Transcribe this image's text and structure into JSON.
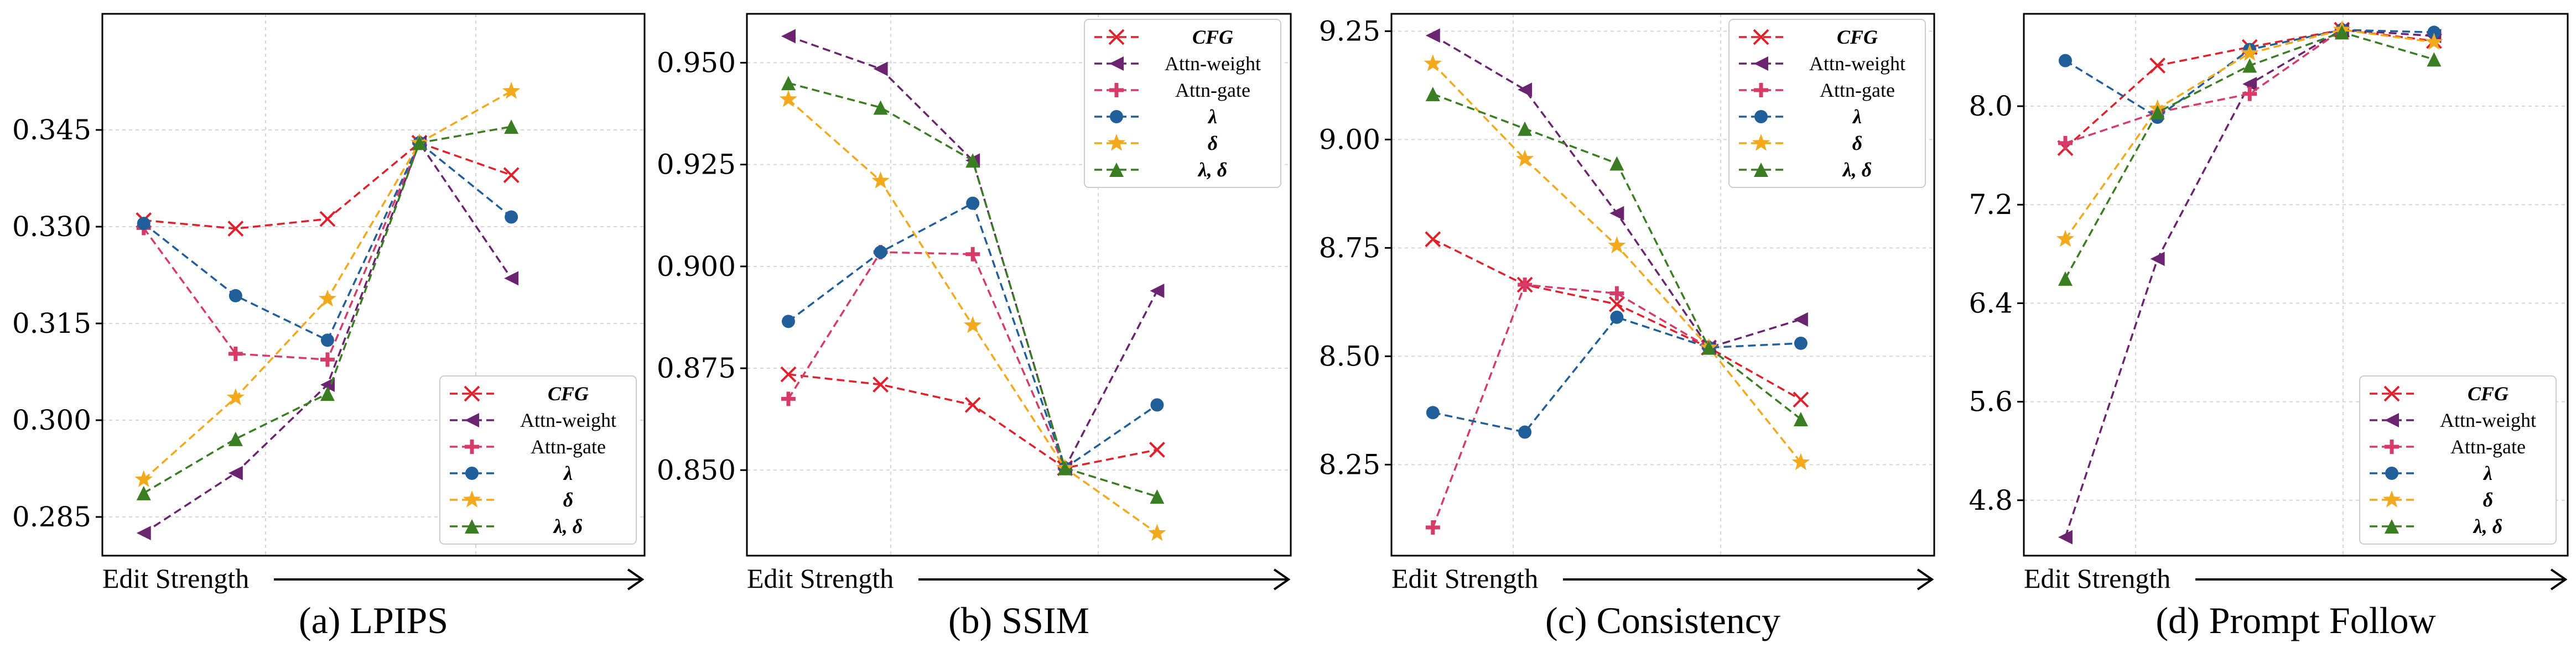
{
  "x_axis_label": "Edit Strength",
  "series_styles": {
    "CFG": {
      "color": "#e0202a",
      "marker": "x"
    },
    "Attn-weight": {
      "color": "#6b2470",
      "marker": "tri-left"
    },
    "Attn-gate": {
      "color": "#d63b6a",
      "marker": "plus"
    },
    "λ": {
      "color": "#215f9a",
      "marker": "circle"
    },
    "δ": {
      "color": "#f2a91c",
      "marker": "star"
    },
    "λ, δ": {
      "color": "#3a7d22",
      "marker": "tri-up"
    }
  },
  "chart_data": [
    {
      "type": "line",
      "title": "(a) LPIPS",
      "xlabel": "Edit Strength",
      "ylabel": "",
      "x": [
        1,
        2,
        3,
        4,
        5,
        6
      ],
      "xlim": [
        0.55,
        6.45
      ],
      "ylim": [
        0.279,
        0.363
      ],
      "yticks": [
        0.285,
        0.3,
        0.315,
        0.33,
        0.345
      ],
      "ytick_labels": [
        "0.285",
        "0.300",
        "0.315",
        "0.330",
        "0.345"
      ],
      "grid": true,
      "legend_position": "lower-right",
      "series": [
        {
          "name": "CFG",
          "values": [
            0.331,
            0.3297,
            0.3312,
            0.343,
            0.338,
            null
          ]
        },
        {
          "name": "Attn-weight",
          "values": [
            0.2825,
            0.2918,
            0.3055,
            0.343,
            0.322,
            null
          ]
        },
        {
          "name": "Attn-gate",
          "values": [
            0.3298,
            0.3103,
            0.3094,
            0.343,
            null,
            null
          ]
        },
        {
          "name": "λ",
          "values": [
            0.3305,
            0.3193,
            0.3124,
            0.343,
            0.3315,
            null
          ]
        },
        {
          "name": "δ",
          "values": [
            0.2908,
            0.3035,
            0.3188,
            0.343,
            0.351,
            null
          ]
        },
        {
          "name": "λ, δ",
          "values": [
            0.2887,
            0.2971,
            0.3041,
            0.343,
            0.3455,
            null
          ]
        }
      ]
    },
    {
      "type": "line",
      "title": "(b) SSIM",
      "xlabel": "Edit Strength",
      "ylabel": "",
      "x": [
        1,
        2,
        3,
        4,
        5,
        6
      ],
      "xlim": [
        0.55,
        6.45
      ],
      "ylim": [
        0.829,
        0.962
      ],
      "yticks": [
        0.85,
        0.875,
        0.9,
        0.925,
        0.95
      ],
      "ytick_labels": [
        "0.850",
        "0.875",
        "0.900",
        "0.925",
        "0.950"
      ],
      "grid": true,
      "legend_position": "upper-right",
      "series": [
        {
          "name": "CFG",
          "values": [
            0.8735,
            0.871,
            0.866,
            0.8505,
            0.855,
            null
          ]
        },
        {
          "name": "Attn-weight",
          "values": [
            0.9565,
            0.9485,
            0.926,
            0.8505,
            0.894,
            null
          ]
        },
        {
          "name": "Attn-gate",
          "values": [
            0.8675,
            0.9035,
            0.903,
            0.8505,
            null,
            null
          ]
        },
        {
          "name": "λ",
          "values": [
            0.8865,
            0.9035,
            0.9155,
            0.8505,
            0.866,
            null
          ]
        },
        {
          "name": "δ",
          "values": [
            0.941,
            0.921,
            0.8855,
            0.8505,
            0.8345,
            null
          ]
        },
        {
          "name": "λ, δ",
          "values": [
            0.945,
            0.939,
            0.926,
            0.8505,
            0.8435,
            null
          ]
        }
      ]
    },
    {
      "type": "line",
      "title": "(c) Consistency",
      "xlabel": "Edit Strength",
      "ylabel": "",
      "x": [
        1,
        2,
        3,
        4,
        5,
        6
      ],
      "xlim": [
        0.55,
        6.45
      ],
      "ylim": [
        8.04,
        9.29
      ],
      "yticks": [
        8.25,
        8.5,
        8.75,
        9.0,
        9.25
      ],
      "ytick_labels": [
        "8.25",
        "8.50",
        "8.75",
        "9.00",
        "9.25"
      ],
      "grid": true,
      "legend_position": "upper-right",
      "series": [
        {
          "name": "CFG",
          "values": [
            8.77,
            8.665,
            8.62,
            8.52,
            8.4,
            null
          ]
        },
        {
          "name": "Attn-weight",
          "values": [
            9.24,
            9.115,
            8.83,
            8.52,
            8.585,
            null
          ]
        },
        {
          "name": "Attn-gate",
          "values": [
            8.105,
            8.665,
            8.645,
            8.52,
            null,
            null
          ]
        },
        {
          "name": "λ",
          "values": [
            8.37,
            8.325,
            8.59,
            8.52,
            8.53,
            null
          ]
        },
        {
          "name": "δ",
          "values": [
            9.175,
            8.955,
            8.755,
            8.52,
            8.255,
            null
          ]
        },
        {
          "name": "λ, δ",
          "values": [
            9.105,
            9.025,
            8.945,
            8.52,
            8.355,
            null
          ]
        }
      ]
    },
    {
      "type": "line",
      "title": "(d) Prompt Follow",
      "xlabel": "Edit Strength",
      "ylabel": "",
      "x": [
        1,
        2,
        3,
        4,
        5,
        6
      ],
      "xlim": [
        0.55,
        6.45
      ],
      "ylim": [
        4.35,
        8.75
      ],
      "yticks": [
        4.8,
        5.6,
        6.4,
        7.2,
        8.0
      ],
      "ytick_labels": [
        "4.8",
        "5.6",
        "6.4",
        "7.2",
        "8.0"
      ],
      "grid": true,
      "legend_position": "lower-right",
      "series": [
        {
          "name": "CFG",
          "values": [
            7.66,
            8.33,
            8.48,
            8.62,
            8.53,
            null
          ]
        },
        {
          "name": "Attn-weight",
          "values": [
            4.5,
            6.76,
            8.18,
            8.62,
            8.57,
            null
          ]
        },
        {
          "name": "Attn-gate",
          "values": [
            7.7,
            7.95,
            8.1,
            8.62,
            null,
            null
          ]
        },
        {
          "name": "λ",
          "values": [
            8.37,
            7.91,
            8.46,
            8.62,
            8.6,
            null
          ]
        },
        {
          "name": "δ",
          "values": [
            6.92,
            7.98,
            8.43,
            8.62,
            8.52,
            null
          ]
        },
        {
          "name": "λ, δ",
          "values": [
            6.6,
            7.95,
            8.33,
            8.6,
            8.38,
            null
          ]
        }
      ]
    }
  ]
}
